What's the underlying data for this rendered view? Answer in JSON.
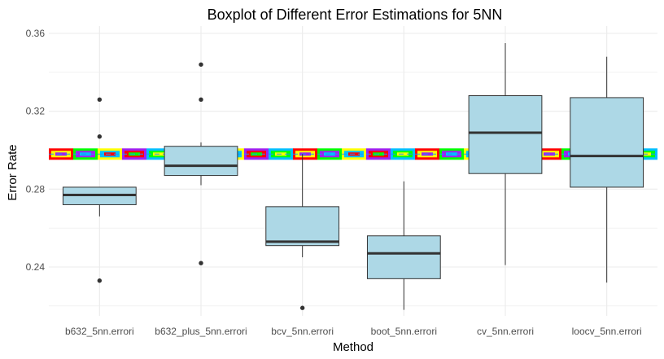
{
  "chart_data": {
    "type": "boxplot",
    "title": "Boxplot of Different Error Estimations for 5NN",
    "xlabel": "Method",
    "ylabel": "Error Rate",
    "ylim": [
      0.216,
      0.363
    ],
    "y_ticks": [
      0.24,
      0.28,
      0.32,
      0.36
    ],
    "y_tick_labels": [
      "0.24",
      "0.28",
      "0.32",
      "0.36"
    ],
    "grid": true,
    "reference_line": 0.298,
    "categories": [
      "b632_5nn.errori",
      "b632_plus_5nn.errori",
      "bcv_5nn.errori",
      "boot_5nn.errori",
      "cv_5nn.errori",
      "loocv_5nn.errori"
    ],
    "boxes": [
      {
        "method": "b632_5nn.errori",
        "whisker_low": 0.266,
        "q1": 0.272,
        "median": 0.277,
        "q3": 0.281,
        "whisker_high": 0.281,
        "outliers": [
          0.233,
          0.307,
          0.326
        ]
      },
      {
        "method": "b632_plus_5nn.errori",
        "whisker_low": 0.282,
        "q1": 0.287,
        "median": 0.292,
        "q3": 0.302,
        "whisker_high": 0.304,
        "outliers": [
          0.242,
          0.326,
          0.344
        ]
      },
      {
        "method": "bcv_5nn.errori",
        "whisker_low": 0.245,
        "q1": 0.251,
        "median": 0.253,
        "q3": 0.271,
        "whisker_high": 0.298,
        "outliers": [
          0.219
        ]
      },
      {
        "method": "boot_5nn.errori",
        "whisker_low": 0.218,
        "q1": 0.234,
        "median": 0.247,
        "q3": 0.256,
        "whisker_high": 0.284,
        "outliers": []
      },
      {
        "method": "cv_5nn.errori",
        "whisker_low": 0.241,
        "q1": 0.288,
        "median": 0.309,
        "q3": 0.328,
        "whisker_high": 0.355,
        "outliers": []
      },
      {
        "method": "loocv_5nn.errori",
        "whisker_low": 0.232,
        "q1": 0.281,
        "median": 0.297,
        "q3": 0.327,
        "whisker_high": 0.348,
        "outliers": []
      }
    ],
    "colors": {
      "box_fill": "#add8e6",
      "box_stroke": "#333333",
      "grid": "#ebebeb",
      "band": [
        "#ff0000",
        "#00ff00",
        "#ffff00",
        "#a020f0",
        "#00bfff"
      ]
    }
  }
}
